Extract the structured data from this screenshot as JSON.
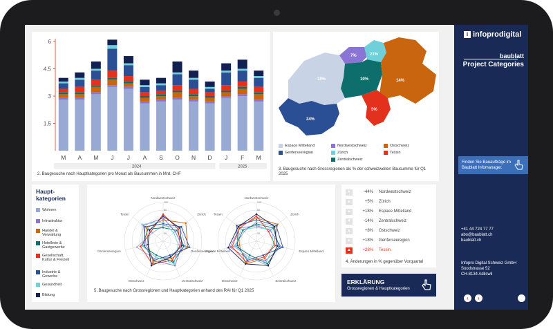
{
  "stacked_chart": {
    "caption": "2. Baugesuche nach Hauptkategorien pro Monat als Bausummen in Mrd. CHF",
    "yticks": [
      "6",
      "4.5",
      "3",
      "1.5"
    ],
    "months": [
      "M",
      "A",
      "M",
      "J",
      "J",
      "A",
      "S",
      "O",
      "N",
      "D",
      "J",
      "F",
      "M"
    ],
    "years": [
      "2024",
      "2025"
    ]
  },
  "map": {
    "caption": "3. Baugesuche nach Grossregionen als % der schweizweiten Bausumme für Q1 2025",
    "regions": [
      {
        "name": "Espace Mittelland",
        "pct": "19%",
        "color": "#c8d3e6"
      },
      {
        "name": "Genferseeregion",
        "pct": "24%",
        "color": "#2b4f94"
      },
      {
        "name": "Nordwestschweiz",
        "pct": "7%",
        "color": "#8a74d4"
      },
      {
        "name": "Zürich",
        "pct": "21%",
        "color": "#6fd0da"
      },
      {
        "name": "Ostschweiz",
        "pct": "14%",
        "color": "#c9650f"
      },
      {
        "name": "Zentralschweiz",
        "pct": "10%",
        "color": "#0d6e6b"
      },
      {
        "name": "Tessin",
        "pct": "5%",
        "color": "#e2321e"
      }
    ]
  },
  "categories": {
    "title": "Haupt-\nkategorien",
    "items": [
      {
        "label": "Wohnen",
        "color": "#98a9d3"
      },
      {
        "label": "Infrastruktur",
        "color": "#8a74d4"
      },
      {
        "label": "Handel & Verwaltung",
        "color": "#c9650f"
      },
      {
        "label": "Hotellerie & Gastgewerbe",
        "color": "#0d6e6b"
      },
      {
        "label": "Gesellschaft, Kultur & Freizeit",
        "color": "#e2321e"
      },
      {
        "label": "Industrie & Gewerbe",
        "color": "#2b4f94"
      },
      {
        "label": "Gesundheit",
        "color": "#6fd0da"
      },
      {
        "label": "Bildung",
        "color": "#122052"
      }
    ]
  },
  "radar": {
    "caption": "5. Baugesuche nach Grossregionen und Hauptkategorien anhand des RAI für Q1 2025",
    "axes": [
      "Nordwestschweiz",
      "Zürich",
      "Espace Mittelland",
      "Zentralschweiz",
      "Ostschweiz",
      "Genferseeregion",
      "Tessin"
    ],
    "ring_labels": [
      "100",
      "80",
      "60",
      "40",
      "20"
    ]
  },
  "changes": {
    "caption": "4. Änderungen in % gegenüber Vorquartal",
    "rows": [
      {
        "value": "-44%",
        "region": "Nordwestschweiz",
        "dir": "down",
        "highlight": false
      },
      {
        "value": "+5%",
        "region": "Zürich",
        "dir": "up",
        "highlight": false
      },
      {
        "value": "+18%",
        "region": "Espace Mittelland",
        "dir": "up",
        "highlight": false
      },
      {
        "value": "-14%",
        "region": "Zentralschweiz",
        "dir": "down",
        "highlight": false
      },
      {
        "value": "+8%",
        "region": "Ostschweiz",
        "dir": "up",
        "highlight": false
      },
      {
        "value": "+18%",
        "region": "Genferseeregion",
        "dir": "up",
        "highlight": false
      },
      {
        "value": "+28%",
        "region": "Tessin",
        "dir": "up",
        "highlight": true
      }
    ]
  },
  "explain": {
    "title": "ERKLÄRUNG",
    "subtitle": "Grossregionen & Hauptkategorien"
  },
  "sidebar": {
    "logo": "infoprodigital",
    "brand_line1": "baublatt",
    "brand_line2": "Project Categories",
    "cta": "Finden Sie Bauaufträge im Baublatt Infomanager.",
    "phone": "+41 44 724 77 77",
    "email": "abo@baublatt.ch",
    "web": "baublatt.ch",
    "company": "Infopro Digital Schweiz GmbH",
    "street": "Soodstrasse 52",
    "city": "CH-8134 Adliswil",
    "prev": "‹",
    "next": "›"
  },
  "chart_data": {
    "type": "bar",
    "stacked": true,
    "categories": [
      "M",
      "A",
      "M",
      "J",
      "J",
      "A",
      "S",
      "O",
      "N",
      "D",
      "J",
      "F",
      "M"
    ],
    "ylim": [
      0,
      6
    ],
    "series": [
      {
        "name": "Wohnen",
        "values": [
          2.8,
          2.8,
          3.1,
          3.5,
          3.4,
          2.6,
          2.7,
          2.8,
          2.7,
          2.6,
          2.9,
          3.0,
          2.7
        ]
      },
      {
        "name": "Infrastruktur",
        "values": [
          0.1,
          0.1,
          0.1,
          0.1,
          0.1,
          0.1,
          0.1,
          0.1,
          0.1,
          0.1,
          0.1,
          0.1,
          0.1
        ]
      },
      {
        "name": "Handel & Verwaltung",
        "values": [
          0.2,
          0.2,
          0.3,
          0.3,
          0.2,
          0.2,
          0.2,
          0.3,
          0.2,
          0.2,
          0.2,
          0.3,
          0.3
        ]
      },
      {
        "name": "Hotellerie & Gastgewerbe",
        "values": [
          0.1,
          0.1,
          0.1,
          0.1,
          0.1,
          0.1,
          0.1,
          0.1,
          0.1,
          0.1,
          0.1,
          0.1,
          0.1
        ]
      },
      {
        "name": "Gesellschaft, Kultur & Freizeit",
        "values": [
          0.2,
          0.3,
          0.3,
          0.4,
          0.3,
          0.2,
          0.2,
          0.3,
          0.3,
          0.2,
          0.3,
          0.3,
          0.3
        ]
      },
      {
        "name": "Industrie & Gewerbe",
        "values": [
          0.3,
          0.4,
          0.5,
          1.2,
          0.6,
          0.3,
          0.3,
          0.6,
          0.5,
          0.2,
          0.7,
          0.6,
          0.5
        ]
      },
      {
        "name": "Gesundheit",
        "values": [
          0.1,
          0.1,
          0.1,
          0.2,
          0.1,
          0.1,
          0.1,
          0.1,
          0.1,
          0.1,
          0.1,
          0.1,
          0.1
        ]
      },
      {
        "name": "Bildung",
        "values": [
          0.2,
          0.3,
          0.4,
          0.3,
          0.4,
          0.3,
          0.3,
          0.6,
          0.4,
          0.3,
          0.4,
          0.5,
          0.3
        ]
      }
    ]
  }
}
